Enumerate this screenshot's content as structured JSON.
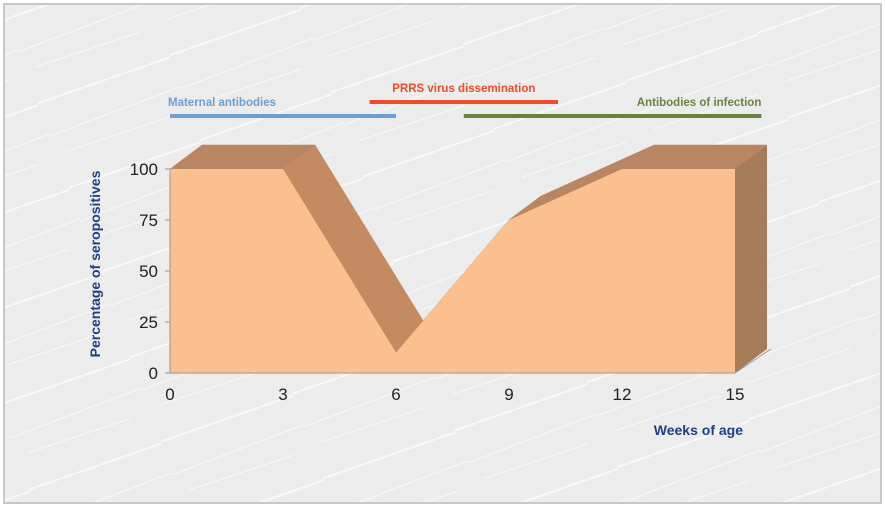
{
  "chart_data": {
    "type": "area",
    "x": [
      0,
      3,
      6,
      9,
      12,
      15
    ],
    "values": [
      100,
      100,
      10,
      75,
      100,
      100
    ],
    "xlabel": "Weeks of age",
    "ylabel": "Percentage of seropositives",
    "xticks": [
      "0",
      "3",
      "6",
      "9",
      "12",
      "15"
    ],
    "yticks": [
      "0",
      "25",
      "50",
      "75",
      "100"
    ],
    "xlim": [
      0,
      15
    ],
    "ylim": [
      0,
      100
    ],
    "grid": false,
    "bands": [
      {
        "label": "Maternal antibodies",
        "start": 0,
        "end": 6,
        "color": "#6f9fd1"
      },
      {
        "label": "PRRS virus dissemination",
        "start": 5.3,
        "end": 10.3,
        "color": "#ee4b2b"
      },
      {
        "label": "Antibodies of infection",
        "start": 7.8,
        "end": 15.7,
        "color": "#6b8140"
      }
    ],
    "colors": {
      "front": "#fbc08f",
      "top": "#b98562",
      "slope": "#c48a62",
      "side": "#a67b58",
      "axis_title": "#1f3f86"
    }
  }
}
